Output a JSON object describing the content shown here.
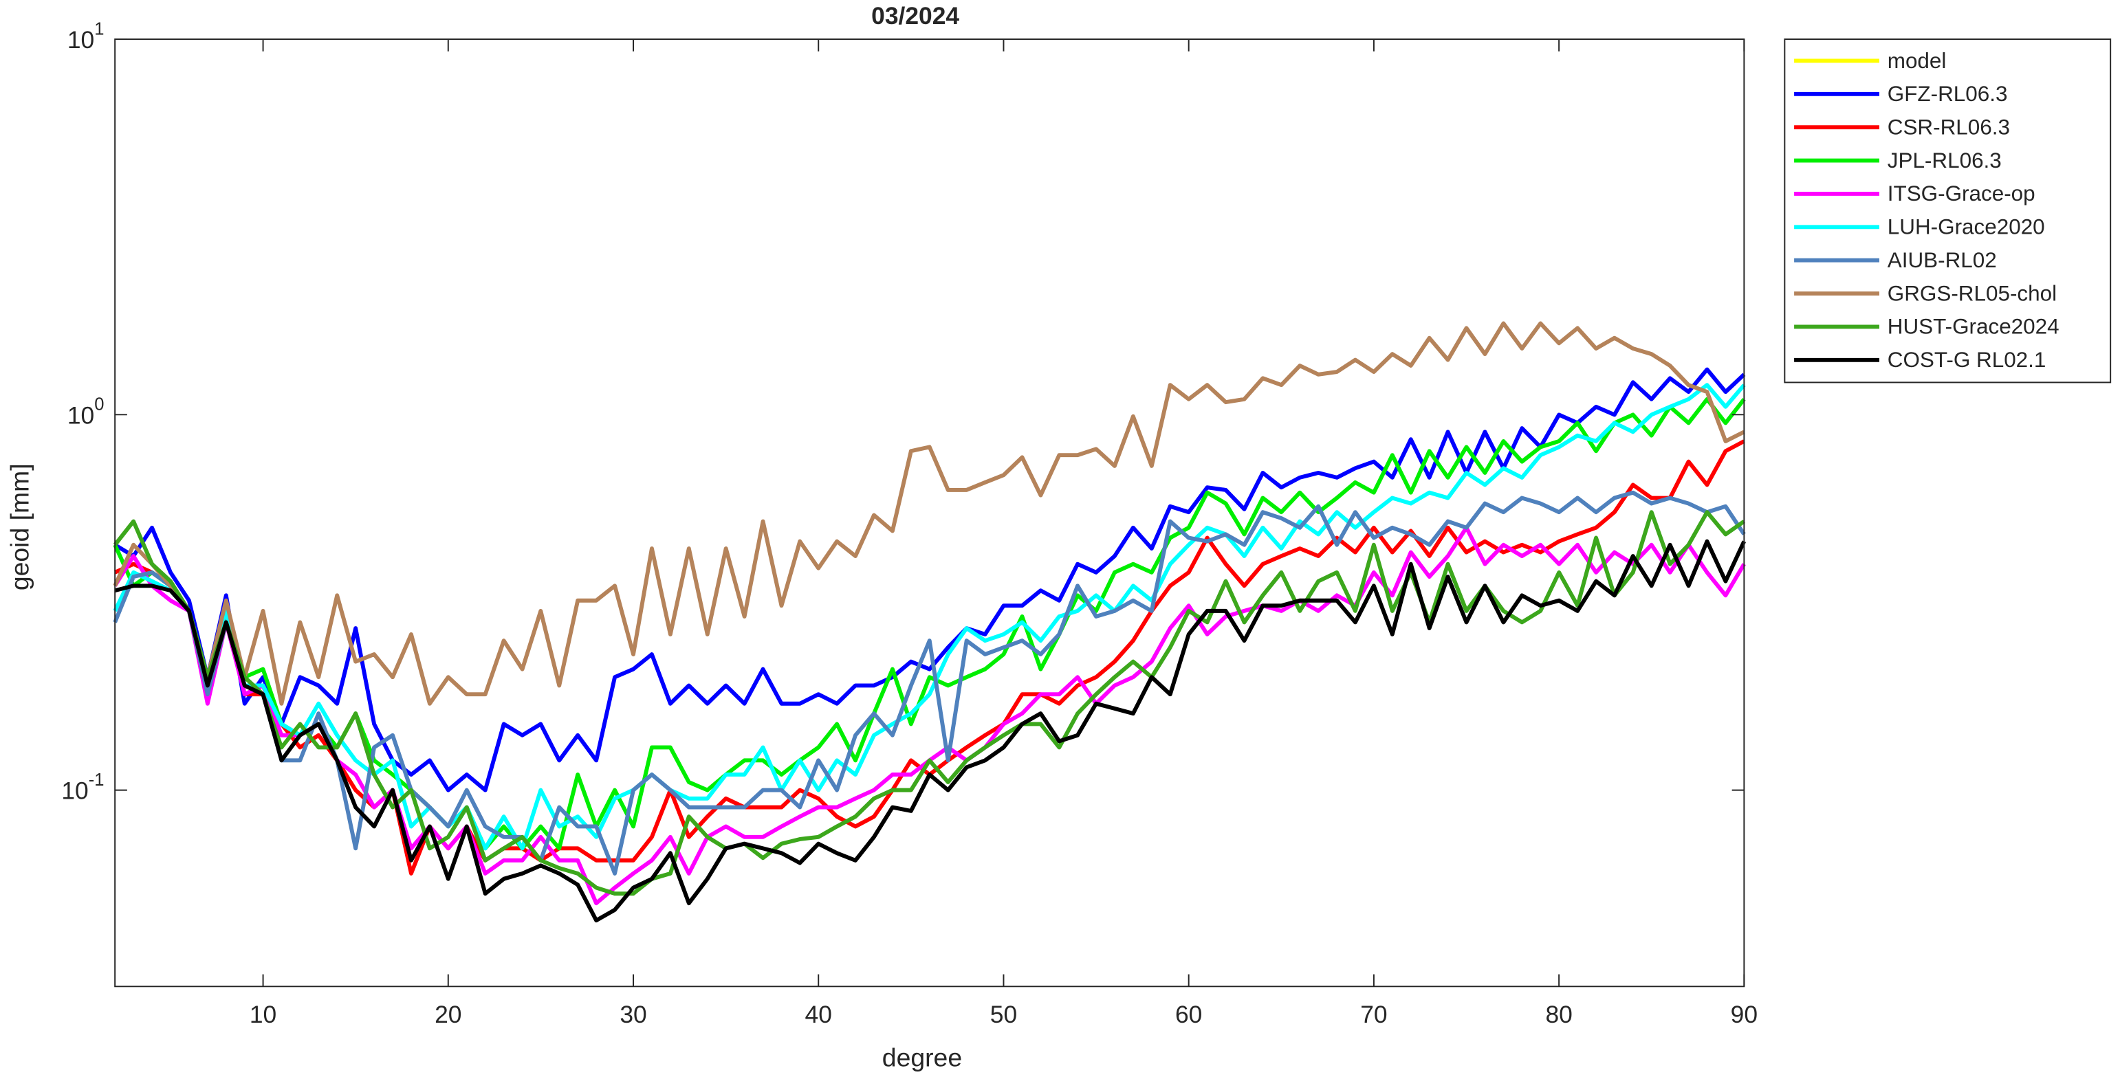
{
  "chart_data": {
    "type": "line",
    "title": "03/2024",
    "xlabel": "degree",
    "ylabel": "geoid [mm]",
    "yscale": "log",
    "grid": false,
    "legend": "outside right",
    "xlim": [
      2,
      90
    ],
    "xticks": [
      10,
      20,
      30,
      40,
      50,
      60,
      70,
      80,
      90
    ],
    "ylim": [
      0.03,
      10
    ],
    "yticks": [
      {
        "value": 0.1,
        "label": "10^-1"
      },
      {
        "value": 1,
        "label": "10^0"
      },
      {
        "value": 10,
        "label": "10^1"
      }
    ],
    "x": [
      2,
      3,
      4,
      5,
      6,
      7,
      8,
      9,
      10,
      11,
      12,
      13,
      14,
      15,
      16,
      17,
      18,
      19,
      20,
      21,
      22,
      23,
      24,
      25,
      26,
      27,
      28,
      29,
      30,
      31,
      32,
      33,
      34,
      35,
      36,
      37,
      38,
      39,
      40,
      41,
      42,
      43,
      44,
      45,
      46,
      47,
      48,
      49,
      50,
      51,
      52,
      53,
      54,
      55,
      56,
      57,
      58,
      59,
      60,
      61,
      62,
      63,
      64,
      65,
      66,
      67,
      68,
      69,
      70,
      71,
      72,
      73,
      74,
      75,
      76,
      77,
      78,
      79,
      80,
      81,
      82,
      83,
      84,
      85,
      86,
      87,
      88,
      89,
      90
    ],
    "series": [
      {
        "name": "model",
        "color": "#ffff00",
        "values": [
          null,
          null,
          null,
          null,
          null,
          null,
          null,
          null,
          null,
          null,
          null,
          null,
          null,
          null,
          null,
          null,
          null,
          null,
          null,
          null,
          null,
          null,
          null,
          null,
          null,
          null,
          null,
          null,
          null,
          null,
          null,
          null,
          null,
          null,
          null,
          null,
          null,
          null,
          null,
          null,
          null,
          null,
          null,
          null,
          null,
          null,
          null,
          null,
          null,
          null,
          null,
          null,
          null,
          null,
          null,
          null,
          null,
          null,
          null,
          null,
          null,
          null,
          null,
          null,
          null,
          null,
          null,
          null,
          null,
          null,
          null,
          null,
          null,
          null,
          null,
          null,
          null,
          null,
          null,
          null,
          null,
          null,
          null,
          null,
          null,
          null,
          null,
          null,
          null
        ]
      },
      {
        "name": "GFZ-RL06.3",
        "color": "#0000ff",
        "values": [
          0.45,
          0.42,
          0.5,
          0.38,
          0.32,
          0.2,
          0.33,
          0.17,
          0.2,
          0.15,
          0.2,
          0.19,
          0.17,
          0.27,
          0.15,
          0.12,
          0.11,
          0.12,
          0.1,
          0.11,
          0.1,
          0.15,
          0.14,
          0.15,
          0.12,
          0.14,
          0.12,
          0.2,
          0.21,
          0.23,
          0.17,
          0.19,
          0.17,
          0.19,
          0.17,
          0.21,
          0.17,
          0.17,
          0.18,
          0.17,
          0.19,
          0.19,
          0.2,
          0.22,
          0.21,
          0.24,
          0.27,
          0.26,
          0.31,
          0.31,
          0.34,
          0.32,
          0.4,
          0.38,
          0.42,
          0.5,
          0.44,
          0.57,
          0.55,
          0.64,
          0.63,
          0.56,
          0.7,
          0.64,
          0.68,
          0.7,
          0.68,
          0.72,
          0.75,
          0.68,
          0.86,
          0.68,
          0.9,
          0.7,
          0.9,
          0.72,
          0.92,
          0.82,
          1.0,
          0.95,
          1.05,
          1.0,
          1.22,
          1.1,
          1.25,
          1.15,
          1.32,
          1.15,
          1.28
        ]
      },
      {
        "name": "CSR-RL06.3",
        "color": "#ff0000",
        "values": [
          0.38,
          0.4,
          0.38,
          0.35,
          0.3,
          0.18,
          0.3,
          0.18,
          0.18,
          0.15,
          0.13,
          0.14,
          0.12,
          0.1,
          0.09,
          0.1,
          0.06,
          0.08,
          0.07,
          0.08,
          0.065,
          0.07,
          0.07,
          0.065,
          0.07,
          0.07,
          0.065,
          0.065,
          0.065,
          0.075,
          0.1,
          0.075,
          0.085,
          0.095,
          0.09,
          0.09,
          0.09,
          0.1,
          0.095,
          0.085,
          0.08,
          0.085,
          0.1,
          0.12,
          0.11,
          0.12,
          0.13,
          0.14,
          0.15,
          0.18,
          0.18,
          0.17,
          0.19,
          0.2,
          0.22,
          0.25,
          0.3,
          0.35,
          0.38,
          0.47,
          0.4,
          0.35,
          0.4,
          0.42,
          0.44,
          0.42,
          0.47,
          0.43,
          0.5,
          0.43,
          0.49,
          0.42,
          0.5,
          0.43,
          0.46,
          0.43,
          0.45,
          0.43,
          0.46,
          0.48,
          0.5,
          0.55,
          0.65,
          0.6,
          0.6,
          0.75,
          0.65,
          0.8,
          0.85
        ]
      },
      {
        "name": "JPL-RL06.3",
        "color": "#00ee00",
        "values": [
          0.45,
          0.35,
          0.38,
          0.35,
          0.3,
          0.2,
          0.28,
          0.2,
          0.21,
          0.15,
          0.14,
          0.15,
          0.13,
          0.16,
          0.12,
          0.11,
          0.1,
          0.09,
          0.08,
          0.09,
          0.07,
          0.08,
          0.07,
          0.08,
          0.07,
          0.11,
          0.08,
          0.1,
          0.08,
          0.13,
          0.13,
          0.105,
          0.1,
          0.11,
          0.12,
          0.12,
          0.11,
          0.12,
          0.13,
          0.15,
          0.12,
          0.16,
          0.21,
          0.15,
          0.2,
          0.19,
          0.2,
          0.21,
          0.23,
          0.29,
          0.21,
          0.26,
          0.33,
          0.3,
          0.38,
          0.4,
          0.38,
          0.47,
          0.5,
          0.62,
          0.58,
          0.48,
          0.6,
          0.55,
          0.62,
          0.55,
          0.6,
          0.66,
          0.62,
          0.78,
          0.62,
          0.8,
          0.68,
          0.82,
          0.7,
          0.85,
          0.75,
          0.82,
          0.85,
          0.95,
          0.8,
          0.95,
          1.0,
          0.88,
          1.05,
          0.95,
          1.1,
          0.95,
          1.1
        ]
      },
      {
        "name": "ITSG-Grace-op",
        "color": "#ff00ff",
        "values": [
          0.35,
          0.42,
          0.35,
          0.32,
          0.3,
          0.17,
          0.28,
          0.18,
          0.19,
          0.14,
          0.14,
          0.15,
          0.12,
          0.11,
          0.09,
          0.1,
          0.07,
          0.08,
          0.07,
          0.08,
          0.06,
          0.065,
          0.065,
          0.075,
          0.065,
          0.065,
          0.05,
          0.055,
          0.06,
          0.065,
          0.075,
          0.06,
          0.075,
          0.08,
          0.075,
          0.075,
          0.08,
          0.085,
          0.09,
          0.09,
          0.095,
          0.1,
          0.11,
          0.11,
          0.12,
          0.13,
          0.12,
          0.13,
          0.15,
          0.16,
          0.18,
          0.18,
          0.2,
          0.17,
          0.19,
          0.2,
          0.22,
          0.27,
          0.31,
          0.26,
          0.29,
          0.3,
          0.31,
          0.3,
          0.32,
          0.3,
          0.33,
          0.31,
          0.38,
          0.33,
          0.43,
          0.37,
          0.42,
          0.5,
          0.4,
          0.45,
          0.42,
          0.45,
          0.4,
          0.45,
          0.38,
          0.43,
          0.4,
          0.45,
          0.38,
          0.45,
          0.38,
          0.33,
          0.4
        ]
      },
      {
        "name": "LUH-Grace2020",
        "color": "#00ffff",
        "values": [
          0.3,
          0.38,
          0.36,
          0.34,
          0.3,
          0.2,
          0.3,
          0.19,
          0.19,
          0.15,
          0.14,
          0.17,
          0.14,
          0.12,
          0.11,
          0.12,
          0.08,
          0.09,
          0.08,
          0.09,
          0.07,
          0.085,
          0.07,
          0.1,
          0.08,
          0.085,
          0.075,
          0.095,
          0.1,
          0.11,
          0.1,
          0.095,
          0.095,
          0.11,
          0.11,
          0.13,
          0.1,
          0.12,
          0.1,
          0.12,
          0.11,
          0.14,
          0.15,
          0.16,
          0.18,
          0.23,
          0.27,
          0.25,
          0.26,
          0.28,
          0.25,
          0.29,
          0.3,
          0.33,
          0.3,
          0.35,
          0.32,
          0.4,
          0.45,
          0.5,
          0.48,
          0.42,
          0.5,
          0.44,
          0.52,
          0.48,
          0.55,
          0.5,
          0.55,
          0.6,
          0.58,
          0.62,
          0.6,
          0.7,
          0.65,
          0.72,
          0.68,
          0.78,
          0.82,
          0.88,
          0.85,
          0.95,
          0.9,
          1.0,
          1.05,
          1.1,
          1.2,
          1.05,
          1.2
        ]
      },
      {
        "name": "AIUB-RL02",
        "color": "#4f81bd",
        "values": [
          0.28,
          0.37,
          0.38,
          0.35,
          0.3,
          0.18,
          0.28,
          0.2,
          0.18,
          0.12,
          0.12,
          0.16,
          0.12,
          0.07,
          0.13,
          0.14,
          0.1,
          0.09,
          0.08,
          0.1,
          0.08,
          0.075,
          0.075,
          0.065,
          0.09,
          0.08,
          0.08,
          0.06,
          0.1,
          0.11,
          0.1,
          0.09,
          0.09,
          0.09,
          0.09,
          0.1,
          0.1,
          0.09,
          0.12,
          0.1,
          0.14,
          0.16,
          0.14,
          0.19,
          0.25,
          0.12,
          0.25,
          0.23,
          0.24,
          0.25,
          0.23,
          0.26,
          0.35,
          0.29,
          0.3,
          0.32,
          0.3,
          0.52,
          0.47,
          0.46,
          0.48,
          0.45,
          0.55,
          0.53,
          0.5,
          0.57,
          0.45,
          0.55,
          0.47,
          0.5,
          0.48,
          0.45,
          0.52,
          0.5,
          0.58,
          0.55,
          0.6,
          0.58,
          0.55,
          0.6,
          0.55,
          0.6,
          0.62,
          0.58,
          0.6,
          0.58,
          0.55,
          0.57,
          0.48
        ]
      },
      {
        "name": "GRGS-RL05-chol",
        "color": "#b5835a",
        "values": [
          0.35,
          0.45,
          0.4,
          0.35,
          0.3,
          0.2,
          0.32,
          0.2,
          0.3,
          0.17,
          0.28,
          0.2,
          0.33,
          0.22,
          0.23,
          0.2,
          0.26,
          0.17,
          0.2,
          0.18,
          0.18,
          0.25,
          0.21,
          0.3,
          0.19,
          0.32,
          0.32,
          0.35,
          0.23,
          0.44,
          0.26,
          0.44,
          0.26,
          0.44,
          0.29,
          0.52,
          0.31,
          0.46,
          0.39,
          0.46,
          0.42,
          0.54,
          0.49,
          0.8,
          0.82,
          0.63,
          0.63,
          0.66,
          0.69,
          0.77,
          0.61,
          0.78,
          0.78,
          0.81,
          0.73,
          0.99,
          0.73,
          1.2,
          1.1,
          1.2,
          1.08,
          1.1,
          1.25,
          1.2,
          1.35,
          1.28,
          1.3,
          1.4,
          1.3,
          1.45,
          1.35,
          1.6,
          1.4,
          1.7,
          1.45,
          1.75,
          1.5,
          1.75,
          1.55,
          1.7,
          1.5,
          1.6,
          1.5,
          1.45,
          1.35,
          1.2,
          1.15,
          0.85,
          0.9
        ]
      },
      {
        "name": "HUST-Grace2024",
        "color": "#3ca71c",
        "values": [
          0.45,
          0.52,
          0.4,
          0.36,
          0.3,
          0.2,
          0.28,
          0.2,
          0.18,
          0.13,
          0.15,
          0.13,
          0.13,
          0.16,
          0.11,
          0.09,
          0.1,
          0.07,
          0.075,
          0.09,
          0.065,
          0.07,
          0.075,
          0.065,
          0.062,
          0.06,
          0.055,
          0.053,
          0.053,
          0.058,
          0.06,
          0.085,
          0.075,
          0.07,
          0.072,
          0.066,
          0.072,
          0.074,
          0.075,
          0.08,
          0.085,
          0.095,
          0.1,
          0.1,
          0.12,
          0.105,
          0.12,
          0.13,
          0.14,
          0.15,
          0.15,
          0.13,
          0.16,
          0.18,
          0.2,
          0.22,
          0.2,
          0.24,
          0.3,
          0.28,
          0.36,
          0.28,
          0.33,
          0.38,
          0.3,
          0.36,
          0.38,
          0.3,
          0.45,
          0.3,
          0.38,
          0.28,
          0.4,
          0.3,
          0.35,
          0.3,
          0.28,
          0.3,
          0.38,
          0.31,
          0.47,
          0.33,
          0.38,
          0.55,
          0.4,
          0.45,
          0.55,
          0.48,
          0.52
        ]
      },
      {
        "name": "COST-G RL02.1",
        "color": "#000000",
        "values": [
          0.34,
          0.35,
          0.35,
          0.34,
          0.3,
          0.19,
          0.28,
          0.19,
          0.18,
          0.12,
          0.14,
          0.15,
          0.12,
          0.09,
          0.08,
          0.1,
          0.065,
          0.08,
          0.058,
          0.08,
          0.053,
          0.058,
          0.06,
          0.063,
          0.06,
          0.056,
          0.045,
          0.048,
          0.055,
          0.058,
          0.068,
          0.05,
          0.058,
          0.07,
          0.072,
          0.07,
          0.068,
          0.064,
          0.072,
          0.068,
          0.065,
          0.075,
          0.09,
          0.088,
          0.11,
          0.1,
          0.115,
          0.12,
          0.13,
          0.15,
          0.16,
          0.135,
          0.14,
          0.17,
          0.165,
          0.16,
          0.2,
          0.18,
          0.26,
          0.3,
          0.3,
          0.25,
          0.31,
          0.31,
          0.32,
          0.32,
          0.32,
          0.28,
          0.35,
          0.26,
          0.4,
          0.27,
          0.37,
          0.28,
          0.35,
          0.28,
          0.33,
          0.31,
          0.32,
          0.3,
          0.36,
          0.33,
          0.42,
          0.35,
          0.45,
          0.35,
          0.46,
          0.36,
          0.46
        ]
      }
    ]
  }
}
